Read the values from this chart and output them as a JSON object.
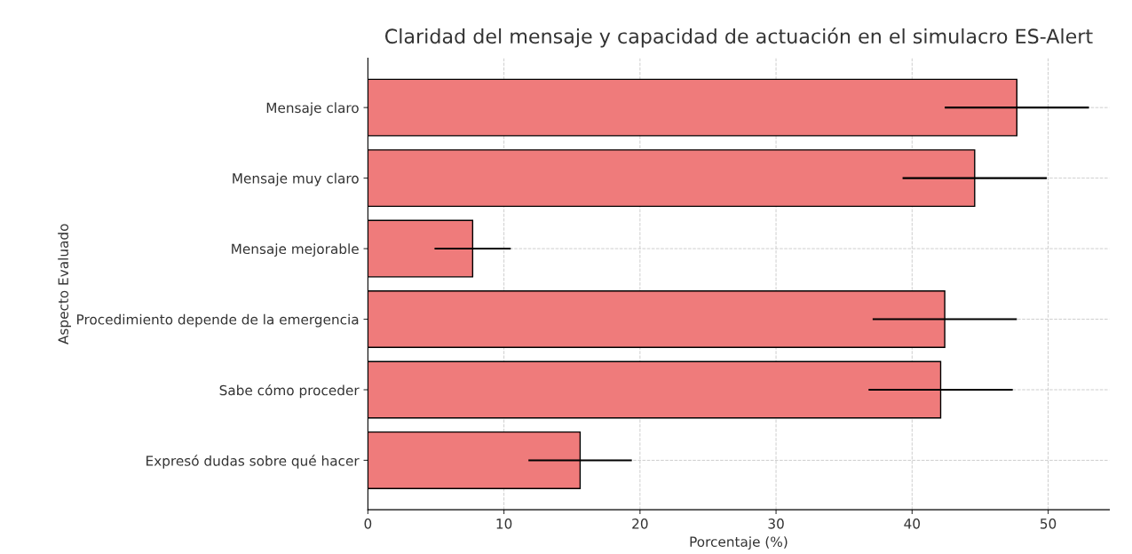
{
  "chart_data": {
    "type": "bar",
    "orientation": "horizontal",
    "title": "Claridad del mensaje y capacidad de actuación en el simulacro ES-Alert",
    "xlabel": "Porcentaje (%)",
    "ylabel": "Aspecto Evaluado",
    "categories": [
      "Mensaje claro",
      "Mensaje muy claro",
      "Mensaje mejorable",
      "Procedimiento depende de la emergencia",
      "Sabe cómo proceder",
      "Expresó dudas sobre qué hacer"
    ],
    "values": [
      47.7,
      44.6,
      7.7,
      42.4,
      42.1,
      15.6
    ],
    "errors": [
      5.3,
      5.3,
      2.8,
      5.3,
      5.3,
      3.8
    ],
    "color": "#ef7b7b",
    "xlim": [
      0,
      54.5
    ],
    "xticks": [
      0,
      10,
      20,
      30,
      40,
      50
    ],
    "grid": true
  }
}
